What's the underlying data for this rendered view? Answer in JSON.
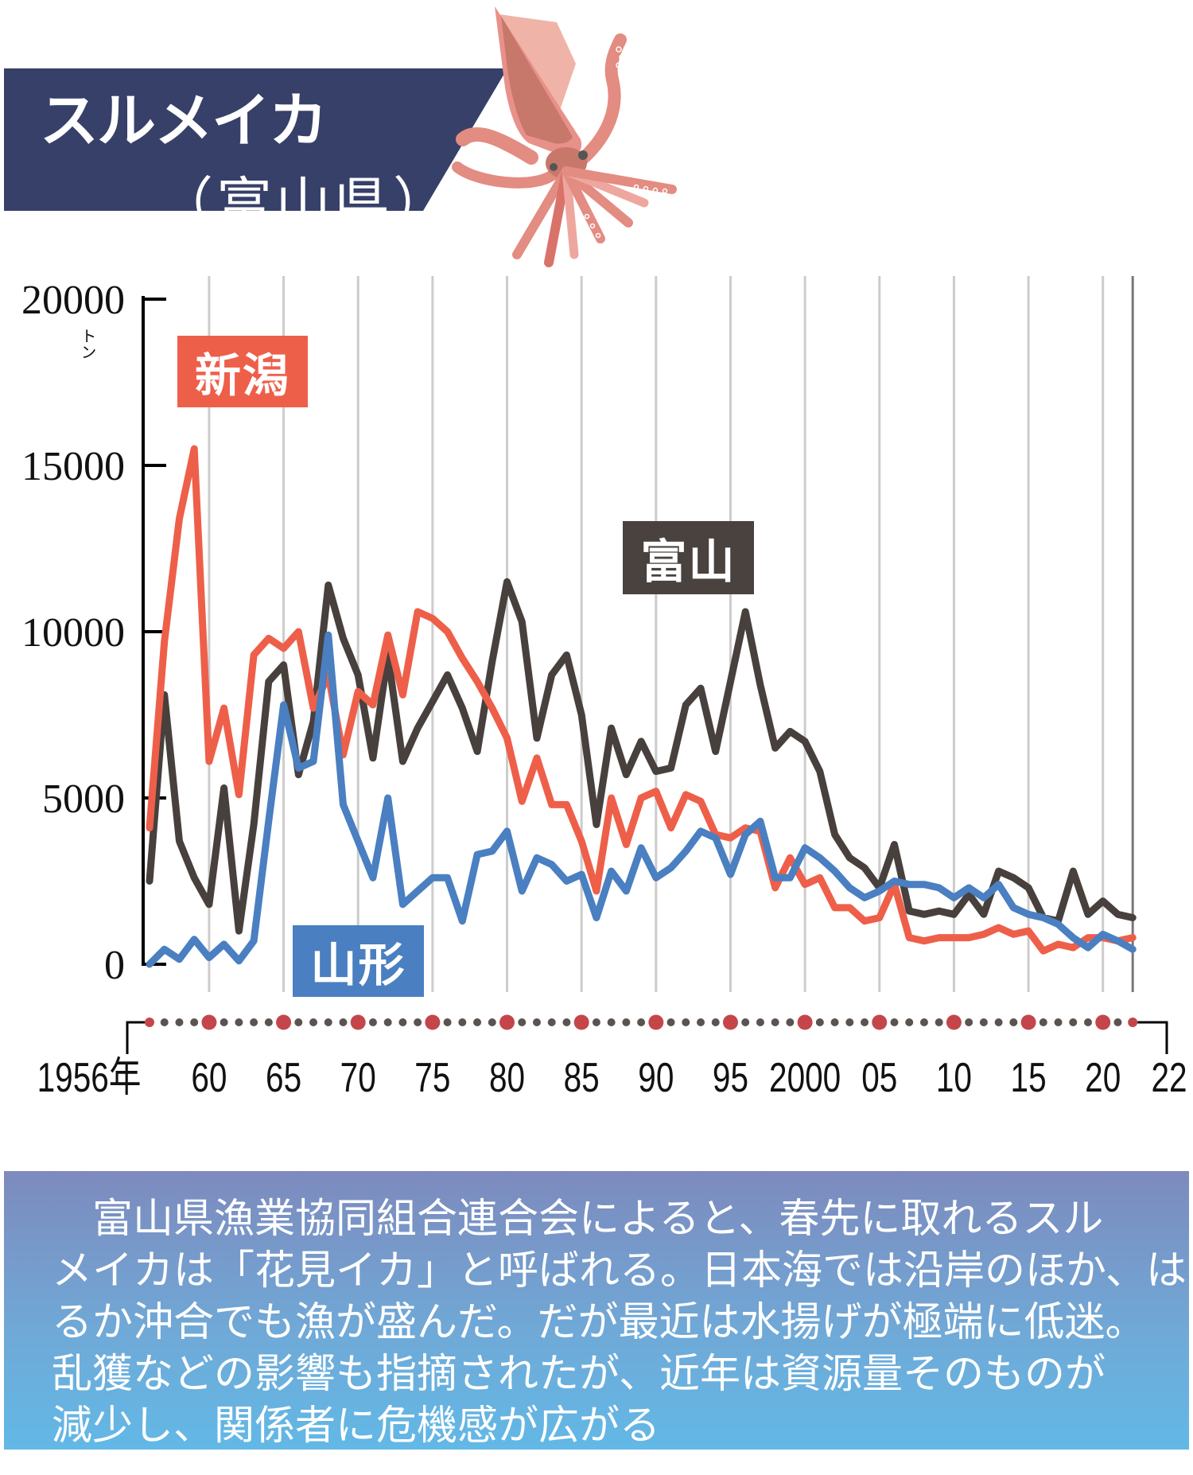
{
  "header": {
    "title": "スルメイカ",
    "subtitle": "（富山県）",
    "banner_color": "#374069"
  },
  "illustration": {
    "name": "squid-illustration",
    "body_color": "#e8918a"
  },
  "chart_data": {
    "type": "line",
    "title": "スルメイカ（富山県）",
    "ylabel": "トン",
    "ylim": [
      0,
      20000
    ],
    "yticks": [
      0,
      5000,
      10000,
      15000,
      20000
    ],
    "ytick_labels": [
      "0",
      "5000",
      "10000",
      "15000",
      "20000"
    ],
    "y_unit": "トン",
    "xlim": [
      1956,
      2022
    ],
    "xtick_labels": [
      {
        "year": 1956,
        "label": "1956年"
      },
      {
        "year": 1960,
        "label": "60"
      },
      {
        "year": 1965,
        "label": "65"
      },
      {
        "year": 1970,
        "label": "70"
      },
      {
        "year": 1975,
        "label": "75"
      },
      {
        "year": 1980,
        "label": "80"
      },
      {
        "year": 1985,
        "label": "85"
      },
      {
        "year": 1990,
        "label": "90"
      },
      {
        "year": 1995,
        "label": "95"
      },
      {
        "year": 2000,
        "label": "2000"
      },
      {
        "year": 2005,
        "label": "05"
      },
      {
        "year": 2010,
        "label": "10"
      },
      {
        "year": 2015,
        "label": "15"
      },
      {
        "year": 2020,
        "label": "20"
      },
      {
        "year": 2022,
        "label": "22"
      }
    ],
    "grid": "vertical every 5 years",
    "x": [
      1956,
      1957,
      1958,
      1959,
      1960,
      1961,
      1962,
      1963,
      1964,
      1965,
      1966,
      1967,
      1968,
      1969,
      1970,
      1971,
      1972,
      1973,
      1974,
      1975,
      1976,
      1977,
      1978,
      1979,
      1980,
      1981,
      1982,
      1983,
      1984,
      1985,
      1986,
      1987,
      1988,
      1989,
      1990,
      1991,
      1992,
      1993,
      1994,
      1995,
      1996,
      1997,
      1998,
      1999,
      2000,
      2001,
      2002,
      2003,
      2004,
      2005,
      2006,
      2007,
      2008,
      2009,
      2010,
      2011,
      2012,
      2013,
      2014,
      2015,
      2016,
      2017,
      2018,
      2019,
      2020,
      2021,
      2022
    ],
    "series": [
      {
        "name": "富山",
        "color": "#47403d",
        "values": [
          2500,
          8100,
          3700,
          2600,
          1800,
          5300,
          1000,
          4200,
          8500,
          9000,
          5700,
          7300,
          11400,
          9800,
          8700,
          6200,
          9300,
          6100,
          7100,
          7900,
          8700,
          7700,
          6400,
          9100,
          11500,
          10300,
          6800,
          8700,
          9300,
          7500,
          4200,
          7100,
          5700,
          6700,
          5800,
          5900,
          7800,
          8300,
          6400,
          8500,
          10600,
          8400,
          6500,
          7000,
          6700,
          5800,
          3900,
          3200,
          2900,
          2300,
          3600,
          1600,
          1500,
          1600,
          1500,
          2100,
          1500,
          2800,
          2600,
          2300,
          1400,
          1300,
          2800,
          1500,
          1900,
          1500,
          1400
        ]
      },
      {
        "name": "新潟",
        "color": "#ee5f4a",
        "values": [
          4100,
          9700,
          13400,
          15500,
          6100,
          7700,
          5100,
          9300,
          9800,
          9500,
          10000,
          7700,
          8700,
          6300,
          8200,
          7800,
          9900,
          8100,
          10600,
          10400,
          10000,
          9200,
          8500,
          7700,
          6800,
          4900,
          6200,
          4800,
          4800,
          3700,
          2200,
          5000,
          3600,
          5000,
          5200,
          4100,
          5100,
          4900,
          3900,
          3800,
          4100,
          4000,
          2300,
          3200,
          2400,
          2600,
          1700,
          1700,
          1300,
          1400,
          2400,
          800,
          700,
          800,
          800,
          800,
          900,
          1100,
          900,
          1000,
          400,
          600,
          500,
          800,
          800,
          700,
          800
        ]
      },
      {
        "name": "山形",
        "color": "#4a7fc1",
        "values": [
          0,
          450,
          150,
          750,
          200,
          600,
          100,
          700,
          4300,
          7800,
          5900,
          6100,
          9900,
          4800,
          3700,
          2600,
          5000,
          1800,
          2200,
          2600,
          2600,
          1300,
          3300,
          3400,
          4000,
          2200,
          3200,
          3000,
          2500,
          2700,
          1400,
          2800,
          2200,
          3500,
          2600,
          2900,
          3400,
          4000,
          3800,
          2700,
          3900,
          4300,
          2600,
          2600,
          3500,
          3200,
          2800,
          2300,
          2000,
          2200,
          2500,
          2400,
          2400,
          2300,
          2000,
          2300,
          2000,
          2400,
          1700,
          1500,
          1400,
          1200,
          800,
          500,
          900,
          700,
          450
        ]
      }
    ],
    "series_labels": [
      "新潟",
      "富山",
      "山形"
    ]
  },
  "note": {
    "lines": [
      "　富山県漁業協同組合連合会によると、春先に取れるスル",
      "メイカは「花見イカ」と呼ばれる。日本海では沿岸のほか、は",
      "るか沖合でも漁が盛んだ。だが最近は水揚げが極端に低迷。",
      "乱獲などの影響も指摘されたが、近年は資源量そのものが",
      "減少し、関係者に危機感が広がる"
    ]
  }
}
